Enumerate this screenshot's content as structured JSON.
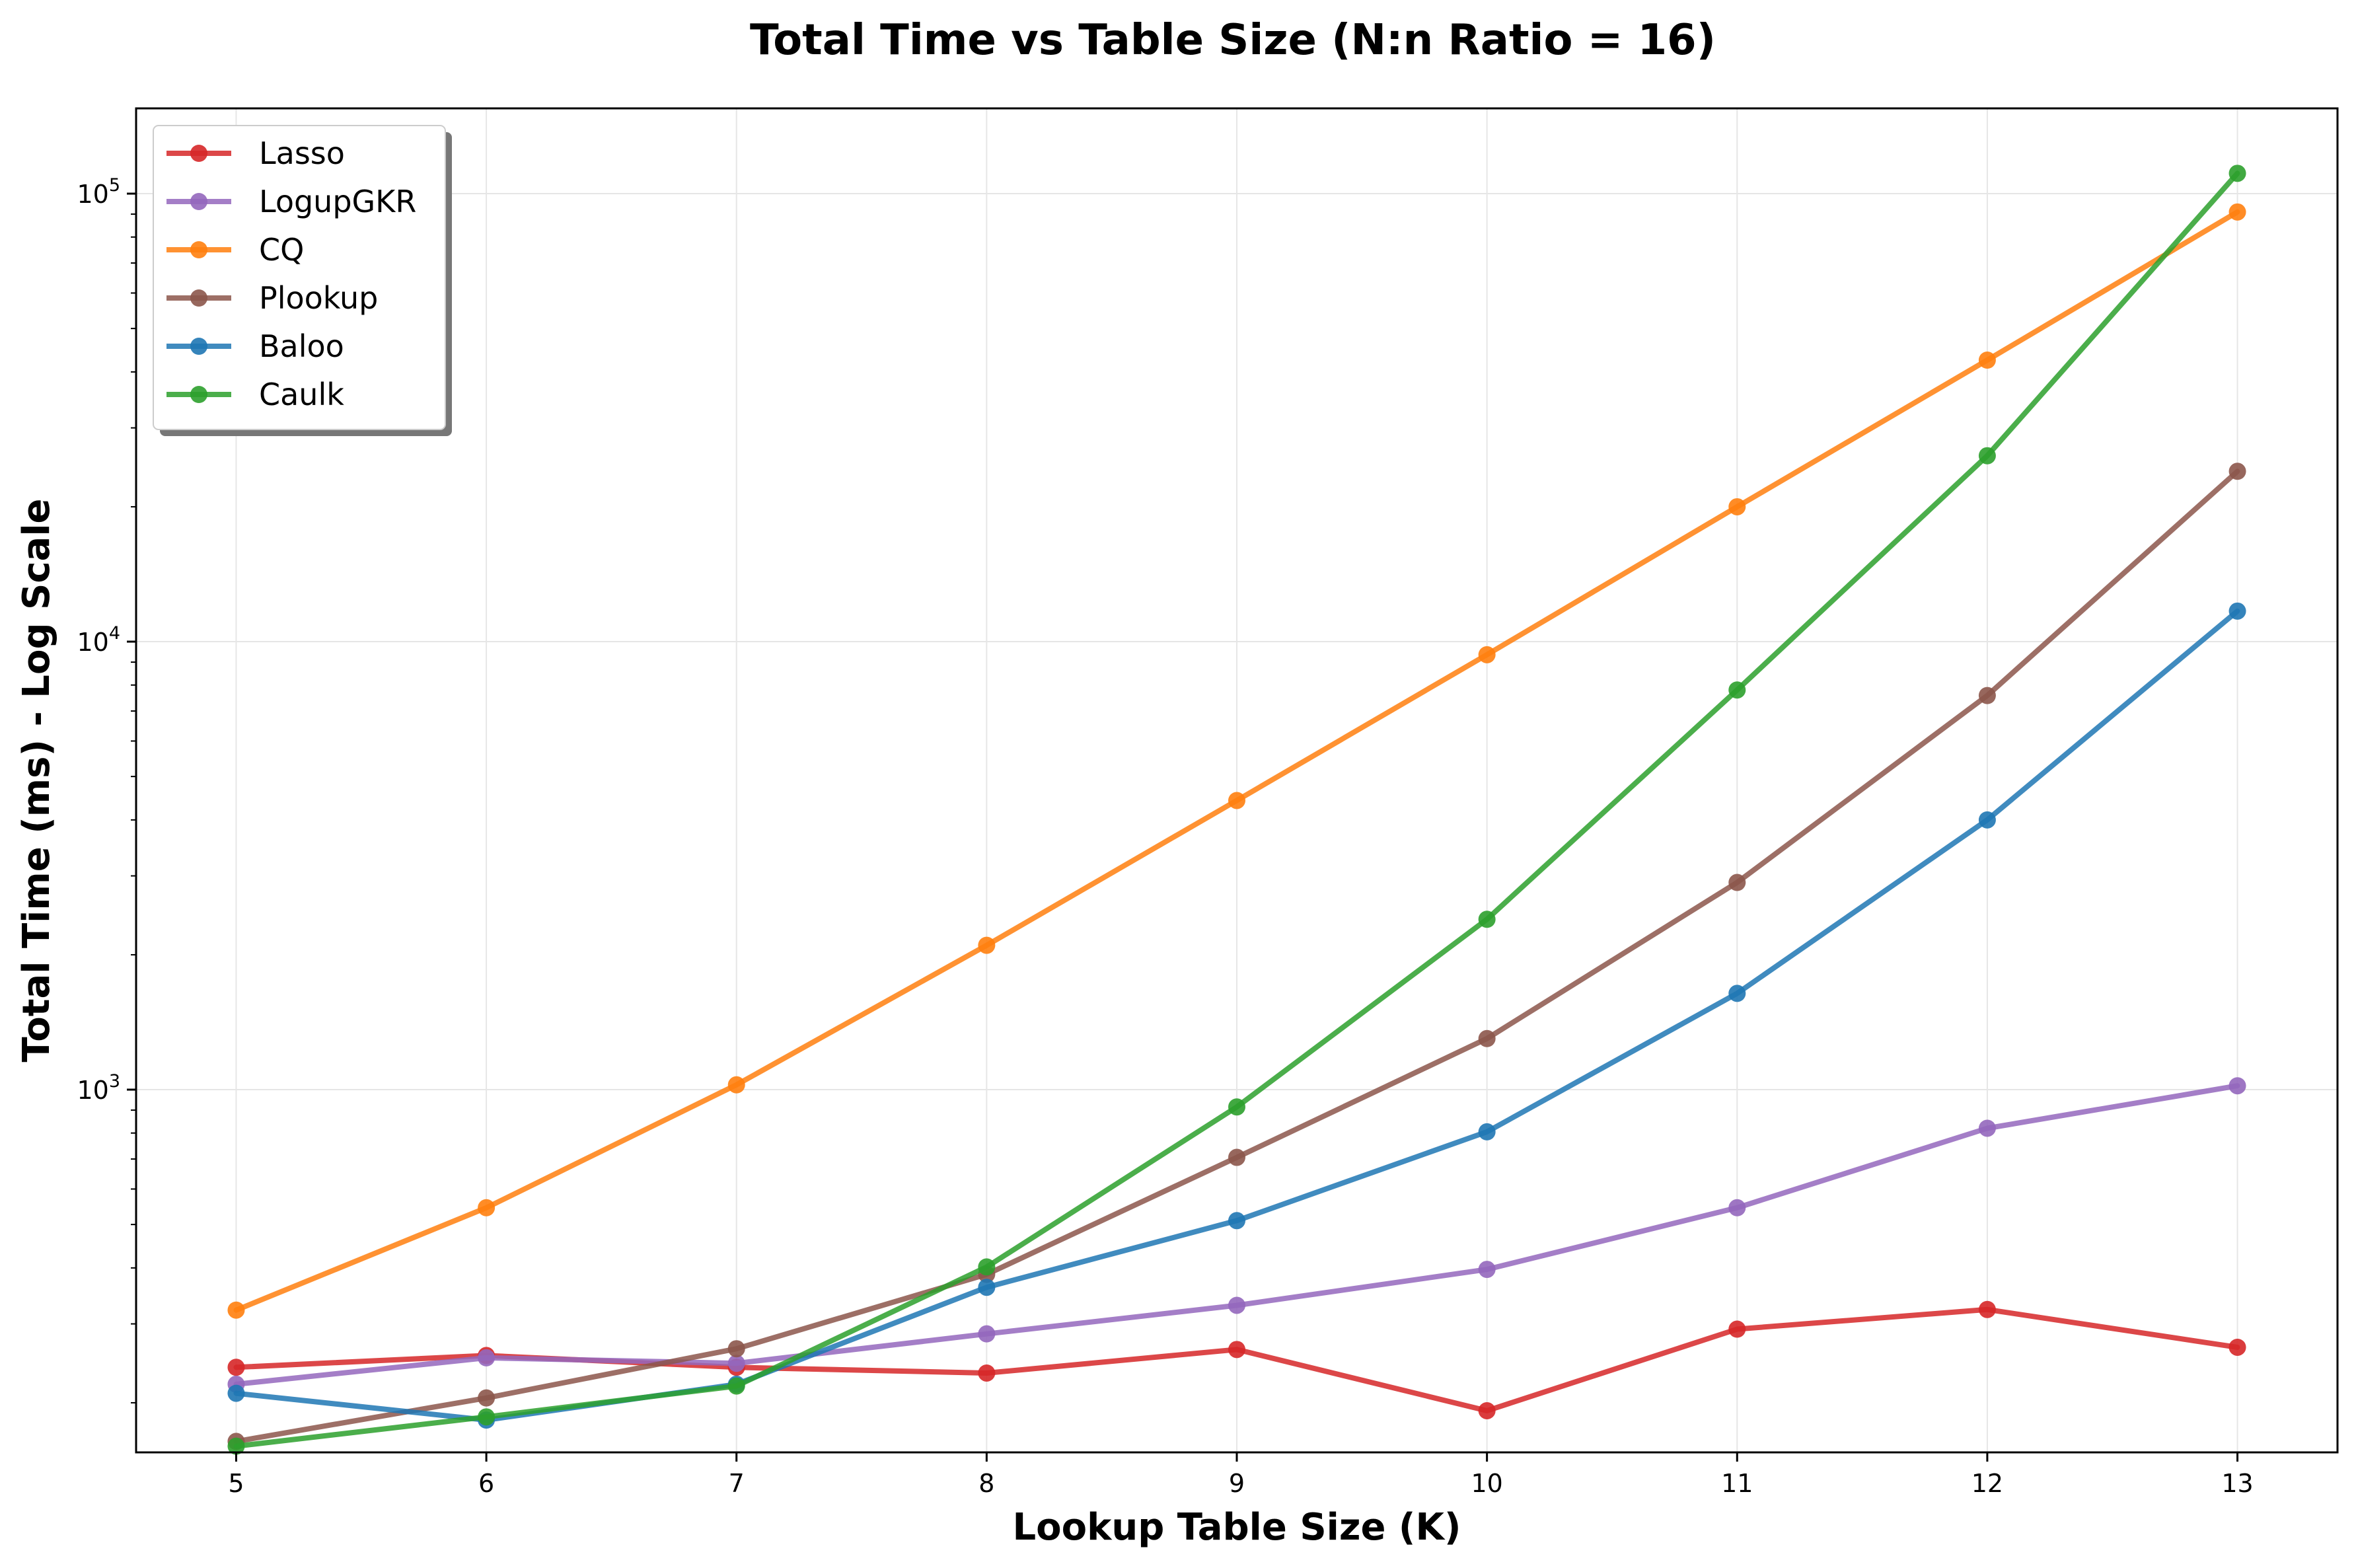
{
  "chart_data": {
    "type": "line",
    "title": "Total Time vs Table Size (N:n Ratio = 16)",
    "xlabel": "Lookup Table Size (K)",
    "ylabel": "Total Time (ms) - Log Scale",
    "yscale": "log",
    "xlim": [
      4.6,
      13.4
    ],
    "ylim": [
      155,
      155000
    ],
    "x": [
      5,
      6,
      7,
      8,
      9,
      10,
      11,
      12,
      13
    ],
    "xticks": [
      "5",
      "6",
      "7",
      "8",
      "9",
      "10",
      "11",
      "12",
      "13"
    ],
    "yticks": [
      1000,
      10000,
      100000
    ],
    "grid": true,
    "legend_position": "top-left",
    "series": [
      {
        "name": "Lasso",
        "color": "#d62728",
        "values": [
          240,
          255,
          240,
          233,
          263,
          192,
          292,
          323,
          266
        ]
      },
      {
        "name": "LogupGKR",
        "color": "#9467bd",
        "values": [
          220,
          252,
          245,
          285,
          330,
          397,
          545,
          820,
          1020
        ]
      },
      {
        "name": "CQ",
        "color": "#ff7f0e",
        "values": [
          322,
          545,
          1025,
          2100,
          4420,
          9350,
          20000,
          42500,
          91000
        ]
      },
      {
        "name": "Plookup",
        "color": "#8c564b",
        "values": [
          164,
          205,
          264,
          387,
          706,
          1300,
          2900,
          7580,
          24000
        ]
      },
      {
        "name": "Baloo",
        "color": "#1f77b4",
        "values": [
          210,
          183,
          220,
          362,
          510,
          805,
          1640,
          4000,
          11700
        ]
      },
      {
        "name": "Caulk",
        "color": "#2ca02c",
        "values": [
          160,
          186,
          218,
          402,
          915,
          2400,
          7800,
          26000,
          111000
        ]
      }
    ]
  }
}
